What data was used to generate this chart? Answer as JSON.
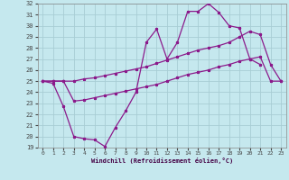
{
  "xlabel": "Windchill (Refroidissement éolien,°C)",
  "xlim": [
    -0.5,
    23.5
  ],
  "ylim": [
    19,
    32
  ],
  "xticks": [
    0,
    1,
    2,
    3,
    4,
    5,
    6,
    7,
    8,
    9,
    10,
    11,
    12,
    13,
    14,
    15,
    16,
    17,
    18,
    19,
    20,
    21,
    22,
    23
  ],
  "yticks": [
    19,
    20,
    21,
    22,
    23,
    24,
    25,
    26,
    27,
    28,
    29,
    30,
    31,
    32
  ],
  "bg_color": "#c5e8ee",
  "grid_color": "#a8cdd4",
  "line_color": "#8b1a8b",
  "line1_x": [
    0,
    1,
    2,
    3,
    4,
    5,
    6,
    7,
    8,
    9,
    10,
    11,
    12,
    13,
    14,
    15,
    16,
    17,
    18,
    19,
    20,
    21
  ],
  "line1_y": [
    25.0,
    24.8,
    22.7,
    20.0,
    19.8,
    19.7,
    19.1,
    20.8,
    22.3,
    24.0,
    28.5,
    29.7,
    27.0,
    28.5,
    31.3,
    31.3,
    32.0,
    31.2,
    30.0,
    29.8,
    27.0,
    26.5
  ],
  "line2_x": [
    0,
    1,
    2,
    3,
    4,
    5,
    6,
    7,
    8,
    9,
    10,
    11,
    12,
    13,
    14,
    15,
    16,
    17,
    18,
    19,
    20,
    21,
    22,
    23
  ],
  "line2_y": [
    25.0,
    25.0,
    25.0,
    25.0,
    25.2,
    25.3,
    25.5,
    25.7,
    25.9,
    26.1,
    26.3,
    26.6,
    26.9,
    27.2,
    27.5,
    27.8,
    28.0,
    28.2,
    28.5,
    29.0,
    29.5,
    29.2,
    26.5,
    25.0
  ],
  "line3_x": [
    0,
    1,
    2,
    3,
    4,
    5,
    6,
    7,
    8,
    9,
    10,
    11,
    12,
    13,
    14,
    15,
    16,
    17,
    18,
    19,
    20,
    21,
    22,
    23
  ],
  "line3_y": [
    25.0,
    25.0,
    25.0,
    23.2,
    23.3,
    23.5,
    23.7,
    23.9,
    24.1,
    24.3,
    24.5,
    24.7,
    25.0,
    25.3,
    25.6,
    25.8,
    26.0,
    26.3,
    26.5,
    26.8,
    27.0,
    27.2,
    25.0,
    25.0
  ]
}
